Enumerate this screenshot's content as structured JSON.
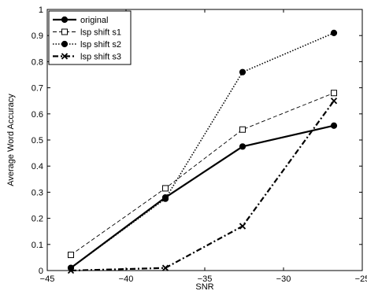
{
  "chart_data": {
    "type": "line",
    "xlabel": "SNR",
    "ylabel": "Average Word Accuracy",
    "xlim": [
      -45,
      -25
    ],
    "ylim": [
      0,
      1
    ],
    "xticks": [
      "-45",
      "-40",
      "-35",
      "-30",
      "-25"
    ],
    "yticks": [
      "0",
      "0.1",
      "0.2",
      "0.3",
      "0.4",
      "0.5",
      "0.6",
      "0.7",
      "0.8",
      "0.9",
      "1"
    ],
    "grid": false,
    "legend_position": "top-left",
    "x": [
      -43.5,
      -37.5,
      -32.6,
      -26.8
    ],
    "series": [
      {
        "name": "original",
        "values": [
          0.01,
          0.28,
          0.475,
          0.555
        ],
        "marker": "filled-circle",
        "line": "solid-thick",
        "color": "#000000"
      },
      {
        "name": "lsp shift s1",
        "values": [
          0.06,
          0.315,
          0.54,
          0.68
        ],
        "marker": "open-square",
        "line": "dashed-thin",
        "color": "#000000"
      },
      {
        "name": "lsp shift s2",
        "values": [
          0.01,
          0.275,
          0.76,
          0.91
        ],
        "marker": "filled-circle",
        "line": "dotted",
        "color": "#000000"
      },
      {
        "name": "lsp shift s3",
        "values": [
          0.0,
          0.01,
          0.17,
          0.65
        ],
        "marker": "x",
        "line": "dashdot-thick",
        "color": "#000000"
      }
    ]
  }
}
